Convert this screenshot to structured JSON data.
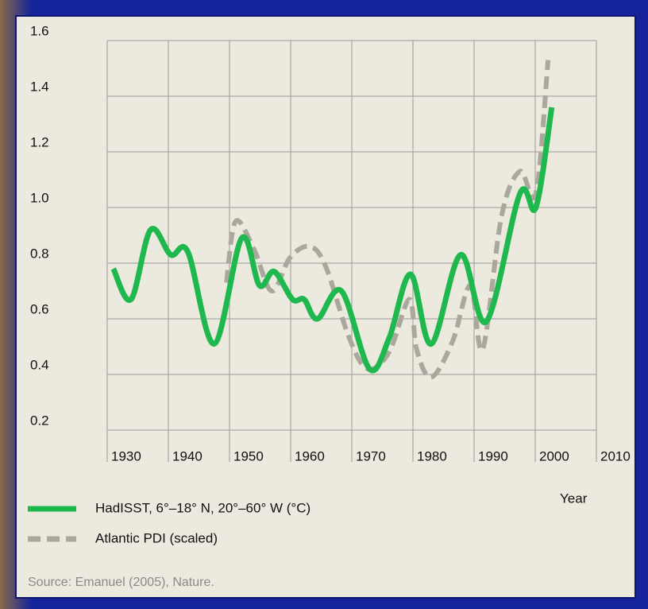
{
  "chart_data": {
    "type": "line",
    "xlabel": "Year",
    "source": "Source: Emanuel (2005), Nature.",
    "xlim": [
      1930,
      2010
    ],
    "xticks": [
      1930,
      1940,
      1950,
      1960,
      1970,
      1980,
      1990,
      2000,
      2010
    ],
    "ylim": [
      0.2,
      1.6
    ],
    "yticks": [
      0.2,
      0.4,
      0.6,
      0.8,
      {
        "value": 1.0,
        "label": "1.0"
      },
      1.2,
      1.4,
      1.6
    ],
    "grid": true,
    "series": [
      {
        "name": "HadISST, 6°–18° N, 20°–60° W (°C)",
        "color": "#1fb84f",
        "dashed": false,
        "x": [
          1931,
          1933.9,
          1937.1,
          1940.4,
          1943.2,
          1947.5,
          1952,
          1954.9,
          1957.3,
          1960.3,
          1962.2,
          1964.4,
          1968.3,
          1972.9,
          1976.1,
          1979.6,
          1983,
          1987.8,
          1992,
          1997.5,
          2000.1,
          2002.7
        ],
        "values": [
          0.78,
          0.67,
          0.92,
          0.83,
          0.84,
          0.51,
          0.89,
          0.72,
          0.77,
          0.67,
          0.67,
          0.6,
          0.7,
          0.42,
          0.53,
          0.76,
          0.51,
          0.83,
          0.59,
          1.05,
          1.0,
          1.36
        ]
      },
      {
        "name": "Atlantic PDI (scaled)",
        "color": "#aaa89c",
        "dashed": true,
        "x": [
          1949.5,
          1951,
          1954,
          1956.9,
          1959.9,
          1963.1,
          1965.7,
          1969.6,
          1972.6,
          1976.1,
          1979.4,
          1980.6,
          1983,
          1986.5,
          1989.4,
          1991.4,
          1994.5,
          1997.5,
          2000.1,
          2002.1
        ],
        "values": [
          0.73,
          0.95,
          0.85,
          0.7,
          0.82,
          0.86,
          0.79,
          0.53,
          0.42,
          0.48,
          0.67,
          0.49,
          0.39,
          0.52,
          0.72,
          0.49,
          0.97,
          1.13,
          1.05,
          1.53
        ]
      }
    ]
  }
}
